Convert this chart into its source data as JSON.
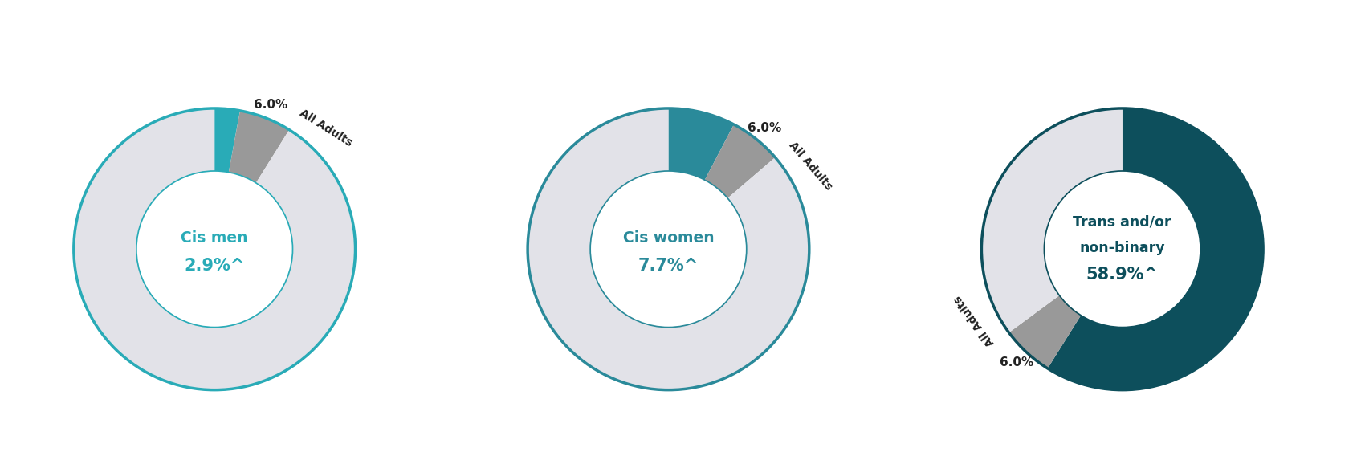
{
  "charts": [
    {
      "center_label_line1": "Cis men",
      "center_label_line2": "2.9%^",
      "main_pct": 2.9,
      "all_adults_pct": 6.0,
      "main_color": "#29ABB7",
      "border_color": "#29ABB7",
      "text_color": "#29ABB7",
      "dark": false
    },
    {
      "center_label_line1": "Cis women",
      "center_label_line2": "7.7%^",
      "main_pct": 7.7,
      "all_adults_pct": 6.0,
      "main_color": "#2A8A9A",
      "border_color": "#2A8A9A",
      "text_color": "#2A8A9A",
      "dark": false
    },
    {
      "center_label_line1": "Trans and/or\nnon-binary",
      "center_label_line2": "58.9%^",
      "main_pct": 58.9,
      "all_adults_pct": 6.0,
      "main_color": "#0D4F5C",
      "border_color": "#0D4F5C",
      "text_color": "#0D4F5C",
      "dark": true
    }
  ],
  "all_adults_label": "All Adults",
  "all_adults_pct_label": "6.0%",
  "gray_slice_color": "#999999",
  "light_gray_color": "#E2E2E8",
  "white_color": "#FFFFFF",
  "background_color": "#FFFFFF"
}
